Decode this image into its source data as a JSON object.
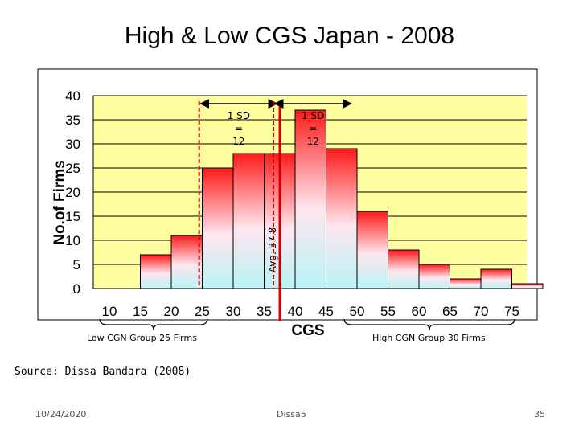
{
  "slide": {
    "title": "High & Low CGS Japan - 2008",
    "source": "Source: Dissa Bandara (2008)",
    "date": "10/24/2020",
    "footer_center": "Dissa5",
    "page_number": "35"
  },
  "chart_data": {
    "type": "bar",
    "title": "",
    "xlabel": "CGS",
    "ylabel": "No.of Firms",
    "ylim": [
      0,
      40
    ],
    "yticks": [
      0,
      5,
      10,
      15,
      20,
      25,
      30,
      35,
      40
    ],
    "xticks": [
      "10",
      "15",
      "20",
      "25",
      "30",
      "35",
      "40",
      "45",
      "50",
      "55",
      "60",
      "65",
      "70",
      "75"
    ],
    "bins": [
      {
        "from": 15,
        "to": 20,
        "value": 7
      },
      {
        "from": 20,
        "to": 25,
        "value": 11
      },
      {
        "from": 25,
        "to": 30,
        "value": 25
      },
      {
        "from": 30,
        "to": 35,
        "value": 28
      },
      {
        "from": 35,
        "to": 40,
        "value": 28
      },
      {
        "from": 40,
        "to": 45,
        "value": 37
      },
      {
        "from": 45,
        "to": 50,
        "value": 29
      },
      {
        "from": 50,
        "to": 55,
        "value": 16
      },
      {
        "from": 55,
        "to": 60,
        "value": 8
      },
      {
        "from": 60,
        "to": 65,
        "value": 5
      },
      {
        "from": 65,
        "to": 70,
        "value": 2
      },
      {
        "from": 70,
        "to": 75,
        "value": 4
      },
      {
        "from": 75,
        "to": 80,
        "value": 1
      }
    ],
    "annotations": {
      "mean_label": "Avg. 37.8",
      "mean_value": 37.8,
      "sd_left": {
        "lines": [
          "1 SD",
          "=",
          "12"
        ],
        "from": 25.8,
        "to": 37.8
      },
      "sd_right": {
        "lines": [
          "1 SD",
          "=",
          "12"
        ],
        "from": 37.8,
        "to": 49.8
      },
      "low_group": "Low CGN Group 25 Firms",
      "high_group": "High CGN Group 30 Firms"
    }
  }
}
